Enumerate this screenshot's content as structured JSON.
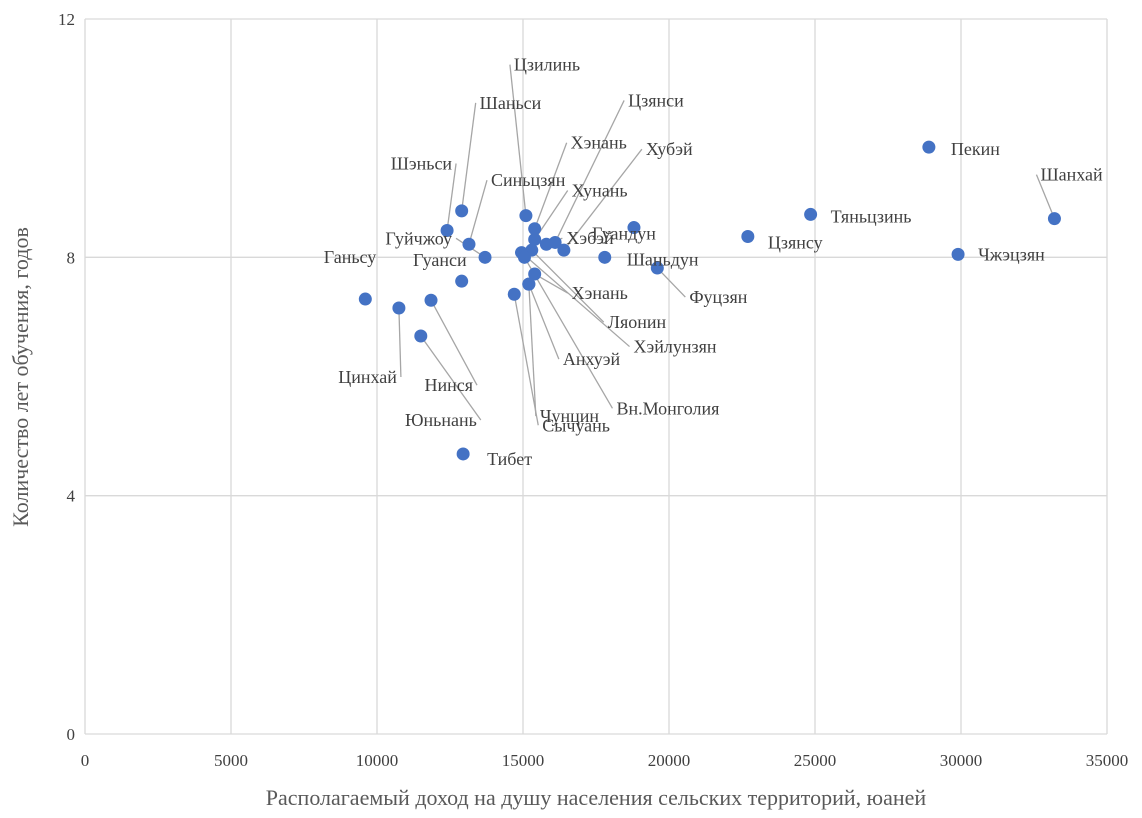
{
  "chart_data": {
    "type": "scatter",
    "title": "",
    "xlabel": "Располагаемый доход на душу населения сельских территорий, юаней",
    "ylabel": "Количество лет обучения, годов",
    "xlim": [
      0,
      35000
    ],
    "ylim": [
      0,
      12
    ],
    "x_ticks": [
      0,
      5000,
      10000,
      15000,
      20000,
      25000,
      30000,
      35000
    ],
    "y_ticks": [
      0,
      4,
      8,
      12
    ],
    "grid": true,
    "legend": "none",
    "marker_color": "#4472C4",
    "leader_color": "#A6A6A6",
    "points": [
      {
        "name": "Пекин",
        "x": 28900,
        "y": 9.85
      },
      {
        "name": "Шанхай",
        "x": 33200,
        "y": 8.65
      },
      {
        "name": "Тяньцзинь",
        "x": 24850,
        "y": 8.72
      },
      {
        "name": "Чжэцзян",
        "x": 29900,
        "y": 8.05
      },
      {
        "name": "Цзянсу",
        "x": 22700,
        "y": 8.35
      },
      {
        "name": "Гуандун",
        "x": 18800,
        "y": 8.5
      },
      {
        "name": "Фуцзян",
        "x": 19600,
        "y": 7.82
      },
      {
        "name": "Шаньдун",
        "x": 17800,
        "y": 8.0
      },
      {
        "name": "Хубэй",
        "x": 16400,
        "y": 8.12
      },
      {
        "name": "Цзянси",
        "x": 16100,
        "y": 8.25
      },
      {
        "name": "Хэбэй",
        "x": 15800,
        "y": 8.22
      },
      {
        "name": "Хунань",
        "x": 15400,
        "y": 8.3
      },
      {
        "name": "Хэнань",
        "x": 15400,
        "y": 8.48
      },
      {
        "name": "Цзилинь",
        "x": 15100,
        "y": 8.7
      },
      {
        "name": "Ляонин",
        "x": 15300,
        "y": 8.12
      },
      {
        "name": "Хэйлунзян",
        "x": 14950,
        "y": 8.08
      },
      {
        "name": "Вн.Монголия",
        "x": 15050,
        "y": 8.0
      },
      {
        "name": "Хэнань",
        "x": 15400,
        "y": 7.72
      },
      {
        "name": "Анхуэй",
        "x": 15200,
        "y": 7.55
      },
      {
        "name": "Чунцин",
        "x": 15200,
        "y": 7.55
      },
      {
        "name": "Сычуань",
        "x": 14700,
        "y": 7.38
      },
      {
        "name": "Шаньси",
        "x": 12900,
        "y": 8.78
      },
      {
        "name": "Синьцзян",
        "x": 13150,
        "y": 8.22
      },
      {
        "name": "Шэньси",
        "x": 12400,
        "y": 8.45
      },
      {
        "name": "Гуйчжоу",
        "x": 13700,
        "y": 8.0
      },
      {
        "name": "Гуанси",
        "x": 12900,
        "y": 7.6
      },
      {
        "name": "Нинся",
        "x": 11850,
        "y": 7.28
      },
      {
        "name": "Юньнань",
        "x": 11500,
        "y": 6.68
      },
      {
        "name": "Цинхай",
        "x": 10750,
        "y": 7.15
      },
      {
        "name": "Ганьсу",
        "x": 9600,
        "y": 7.3
      },
      {
        "name": "Тибет",
        "x": 12950,
        "y": 4.7
      }
    ]
  }
}
